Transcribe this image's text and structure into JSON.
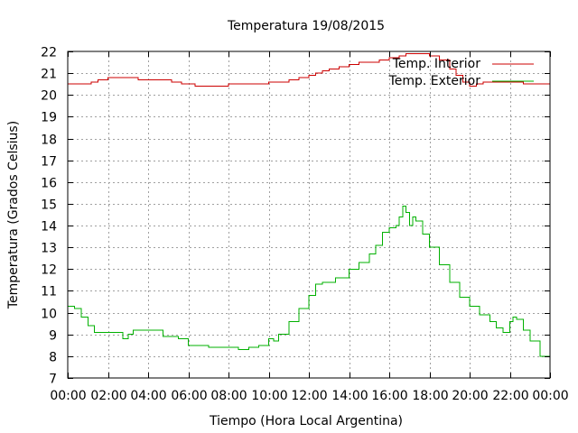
{
  "chart_data": {
    "type": "line",
    "title": "Temperatura 19/08/2015",
    "xlabel": "Tiempo (Hora Local Argentina)",
    "ylabel": "Temperatura (Grados Celsius)",
    "xlim": [
      "00:00",
      "24:00"
    ],
    "ylim": [
      7,
      22
    ],
    "x_ticks": [
      "00:00",
      "02:00",
      "04:00",
      "06:00",
      "08:00",
      "10:00",
      "12:00",
      "14:00",
      "16:00",
      "18:00",
      "20:00",
      "22:00",
      "00:00"
    ],
    "y_ticks": [
      "7",
      "8",
      "9",
      "10",
      "11",
      "12",
      "13",
      "14",
      "15",
      "16",
      "17",
      "18",
      "19",
      "20",
      "21",
      "22"
    ],
    "grid": true,
    "legend_position": "top-right",
    "series": [
      {
        "name": "Temp. Interior",
        "color": "#cc0000",
        "x": [
          "00:00",
          "00:50",
          "01:10",
          "01:30",
          "02:00",
          "03:00",
          "03:30",
          "04:00",
          "04:40",
          "05:10",
          "05:40",
          "06:00",
          "06:20",
          "06:40",
          "07:20",
          "08:00",
          "08:40",
          "09:00",
          "09:40",
          "10:00",
          "10:30",
          "11:00",
          "11:30",
          "12:00",
          "12:20",
          "12:40",
          "13:00",
          "13:30",
          "14:00",
          "14:30",
          "15:00",
          "15:30",
          "16:00",
          "16:30",
          "16:50",
          "17:20",
          "17:40",
          "18:00",
          "18:30",
          "19:00",
          "19:20",
          "19:40",
          "20:00",
          "20:20",
          "20:40",
          "21:00",
          "21:30",
          "22:00",
          "22:40",
          "23:30",
          "24:00"
        ],
        "values": [
          20.5,
          20.5,
          20.6,
          20.7,
          20.8,
          20.8,
          20.7,
          20.7,
          20.7,
          20.6,
          20.5,
          20.5,
          20.4,
          20.4,
          20.4,
          20.5,
          20.5,
          20.5,
          20.5,
          20.6,
          20.6,
          20.7,
          20.8,
          20.9,
          21.0,
          21.1,
          21.2,
          21.3,
          21.4,
          21.5,
          21.5,
          21.6,
          21.7,
          21.8,
          21.9,
          21.9,
          21.9,
          21.8,
          21.6,
          21.2,
          20.9,
          20.6,
          20.4,
          20.5,
          20.6,
          20.6,
          20.6,
          20.6,
          20.5,
          20.5,
          20.4
        ]
      },
      {
        "name": "Temp. Exterior",
        "color": "#00b000",
        "x": [
          "00:00",
          "00:20",
          "00:40",
          "01:00",
          "01:20",
          "01:40",
          "02:00",
          "02:30",
          "02:45",
          "03:00",
          "03:15",
          "03:30",
          "04:00",
          "04:30",
          "04:45",
          "05:00",
          "05:30",
          "06:00",
          "06:30",
          "07:00",
          "07:30",
          "08:00",
          "08:30",
          "09:00",
          "09:30",
          "10:00",
          "10:15",
          "10:30",
          "11:00",
          "11:30",
          "12:00",
          "12:20",
          "12:40",
          "13:00",
          "13:20",
          "13:40",
          "14:00",
          "14:30",
          "15:00",
          "15:20",
          "15:40",
          "16:00",
          "16:20",
          "16:30",
          "16:40",
          "16:50",
          "17:00",
          "17:10",
          "17:20",
          "17:40",
          "18:00",
          "18:30",
          "19:00",
          "19:30",
          "20:00",
          "20:30",
          "21:00",
          "21:20",
          "21:40",
          "22:00",
          "22:10",
          "22:20",
          "22:40",
          "23:00",
          "23:30",
          "24:00"
        ],
        "values": [
          10.3,
          10.2,
          9.8,
          9.4,
          9.1,
          9.1,
          9.1,
          9.1,
          8.8,
          9.0,
          9.2,
          9.2,
          9.2,
          9.2,
          8.9,
          8.9,
          8.8,
          8.5,
          8.5,
          8.4,
          8.4,
          8.4,
          8.3,
          8.4,
          8.5,
          8.8,
          8.7,
          9.0,
          9.6,
          10.2,
          10.8,
          11.3,
          11.4,
          11.4,
          11.6,
          11.6,
          12.0,
          12.3,
          12.7,
          13.1,
          13.7,
          13.9,
          14.0,
          14.4,
          14.9,
          14.6,
          14.0,
          14.4,
          14.2,
          13.6,
          13.0,
          12.2,
          11.4,
          10.7,
          10.3,
          9.9,
          9.6,
          9.3,
          9.1,
          9.6,
          9.8,
          9.7,
          9.2,
          8.7,
          8.0,
          7.5
        ]
      }
    ]
  }
}
